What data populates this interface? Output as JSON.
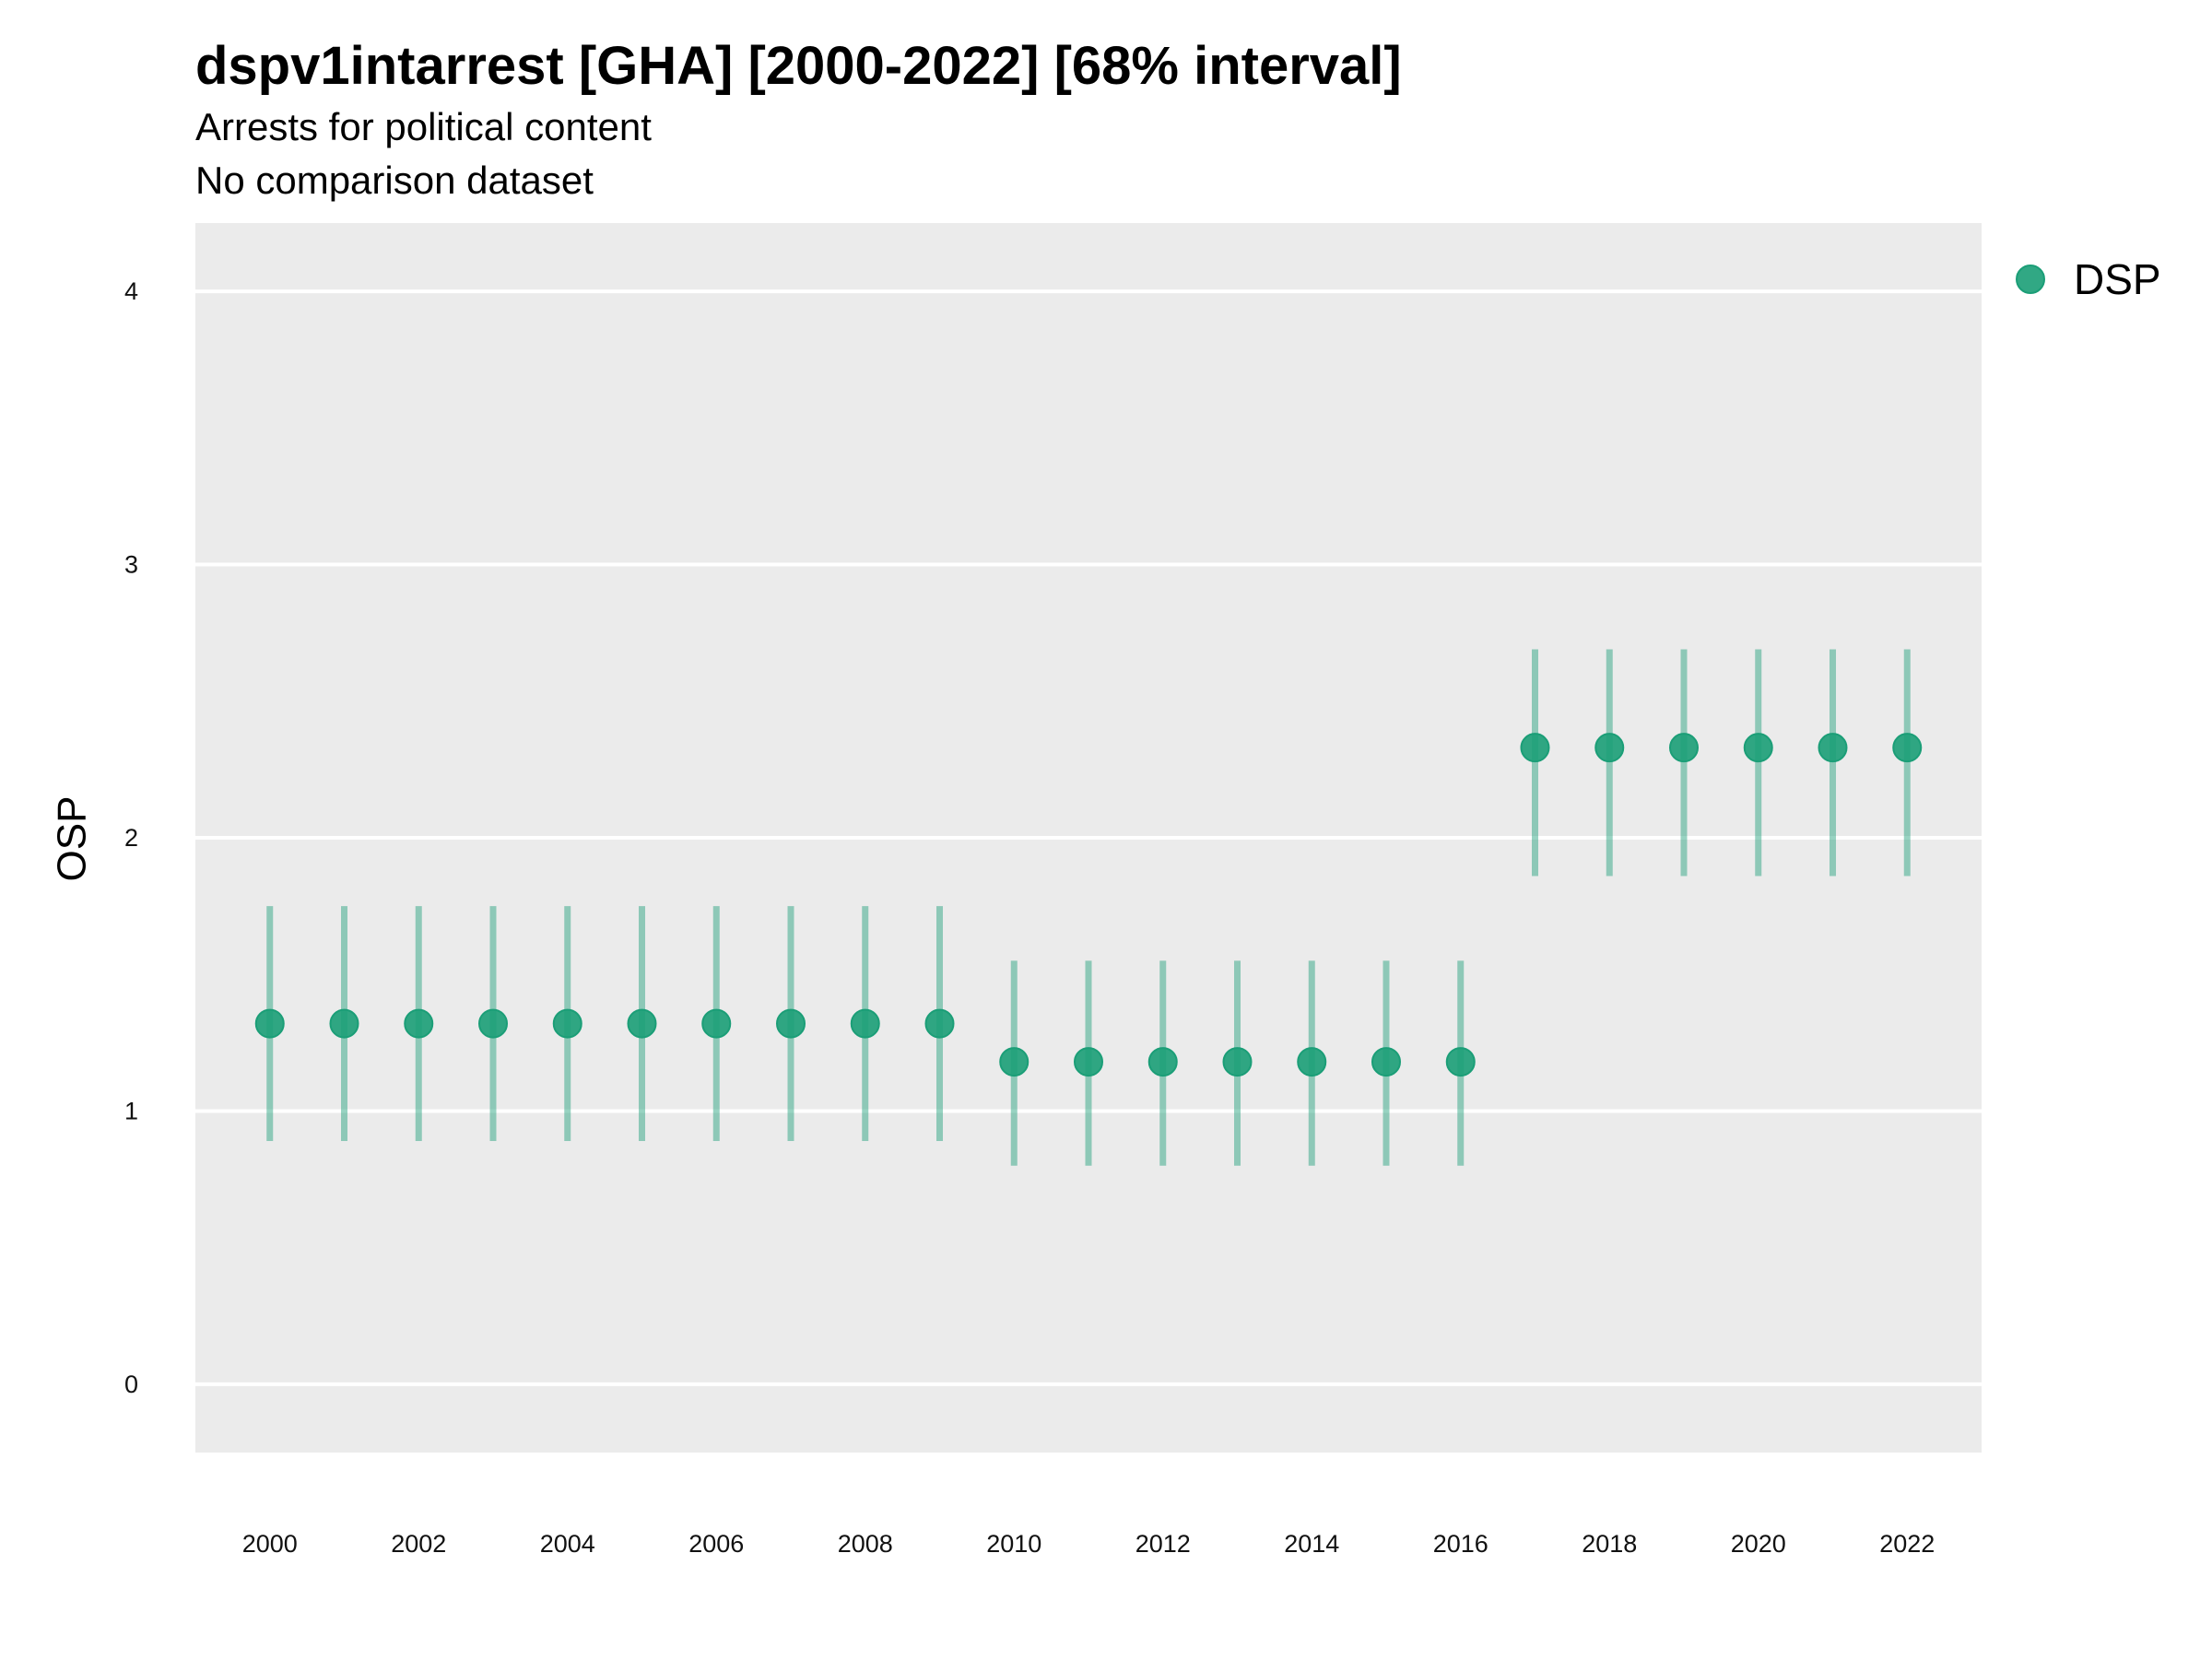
{
  "chart_data": {
    "type": "scatter",
    "title": "dspv1intarrest [GHA] [2000-2022] [68% interval]",
    "subtitle": "Arrests for political content",
    "caption": "No comparison dataset",
    "xlabel": "",
    "ylabel": "OSP",
    "xlim": [
      1999,
      2023
    ],
    "ylim": [
      -0.25,
      4.25
    ],
    "x_ticks": [
      "2000",
      "2002",
      "2004",
      "2006",
      "2008",
      "2010",
      "2012",
      "2014",
      "2016",
      "2018",
      "2020",
      "2022"
    ],
    "y_ticks": [
      "0",
      "1",
      "2",
      "3",
      "4"
    ],
    "grid": true,
    "legend": "right",
    "series": [
      {
        "name": "DSP",
        "color": "#1b9e77",
        "x": [
          2000,
          2001,
          2002,
          2003,
          2004,
          2005,
          2006,
          2007,
          2008,
          2009,
          2010,
          2011,
          2012,
          2013,
          2014,
          2015,
          2016,
          2017,
          2018,
          2019,
          2020,
          2021,
          2022
        ],
        "y": [
          1.32,
          1.32,
          1.32,
          1.32,
          1.32,
          1.32,
          1.32,
          1.32,
          1.32,
          1.32,
          1.18,
          1.18,
          1.18,
          1.18,
          1.18,
          1.18,
          1.18,
          2.33,
          2.33,
          2.33,
          2.33,
          2.33,
          2.33
        ],
        "lower": [
          0.89,
          0.89,
          0.89,
          0.89,
          0.89,
          0.89,
          0.89,
          0.89,
          0.89,
          0.89,
          0.8,
          0.8,
          0.8,
          0.8,
          0.8,
          0.8,
          0.8,
          1.86,
          1.86,
          1.86,
          1.86,
          1.86,
          1.86
        ],
        "upper": [
          1.75,
          1.75,
          1.75,
          1.75,
          1.75,
          1.75,
          1.75,
          1.75,
          1.75,
          1.75,
          1.55,
          1.55,
          1.55,
          1.55,
          1.55,
          1.55,
          1.55,
          2.69,
          2.69,
          2.69,
          2.69,
          2.69,
          2.69
        ]
      }
    ]
  }
}
